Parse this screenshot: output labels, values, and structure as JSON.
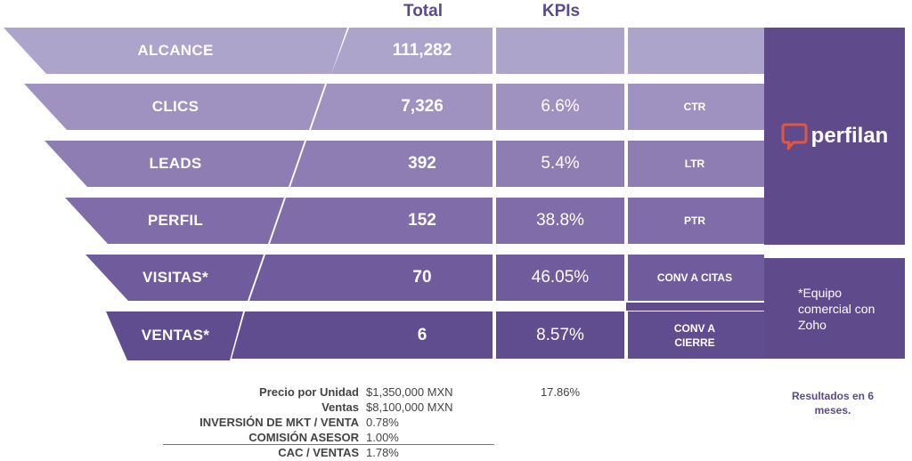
{
  "headers": {
    "total": "Total",
    "kpis": "KPIs"
  },
  "colors": [
    "#ada4cb",
    "#9f92c0",
    "#8d7db3",
    "#7f6ca9",
    "#705c9d",
    "#604d90"
  ],
  "stages": [
    {
      "label": "ALCANCE",
      "total": "111,282",
      "pct": "",
      "code": ""
    },
    {
      "label": "CLICS",
      "total": "7,326",
      "pct": "6.6%",
      "code": "CTR"
    },
    {
      "label": "LEADS",
      "total": "392",
      "pct": "5.4%",
      "code": "LTR"
    },
    {
      "label": "PERFIL",
      "total": "152",
      "pct": "38.8%",
      "code": "PTR"
    },
    {
      "label": "VISITAS*",
      "total": "70",
      "pct": "46.05%",
      "code": "CONV A CITAS"
    },
    {
      "label": "VENTAS*",
      "total": "6",
      "pct": "8.57%",
      "code": "CONV A CIERRE"
    }
  ],
  "brand": {
    "name": "perfilan",
    "icon": "chat-bubble-p-icon",
    "color": "#e2573f"
  },
  "note": "*Equipo comercial con Zoho",
  "summary": {
    "rows": [
      {
        "label": "Precio por Unidad",
        "value": "$1,350,000 MXN"
      },
      {
        "label": "Ventas",
        "value": "$8,100,000 MXN"
      },
      {
        "label": "INVERSIÓN DE MKT / VENTA",
        "value": "0.78%"
      },
      {
        "label": "COMISIÓN ASESOR",
        "value": "1.00%"
      },
      {
        "label": "CAC / VENTAS",
        "value": "1.78%"
      }
    ],
    "kpi_total": "17.86%",
    "results_note": "Resultados en 6 meses."
  }
}
